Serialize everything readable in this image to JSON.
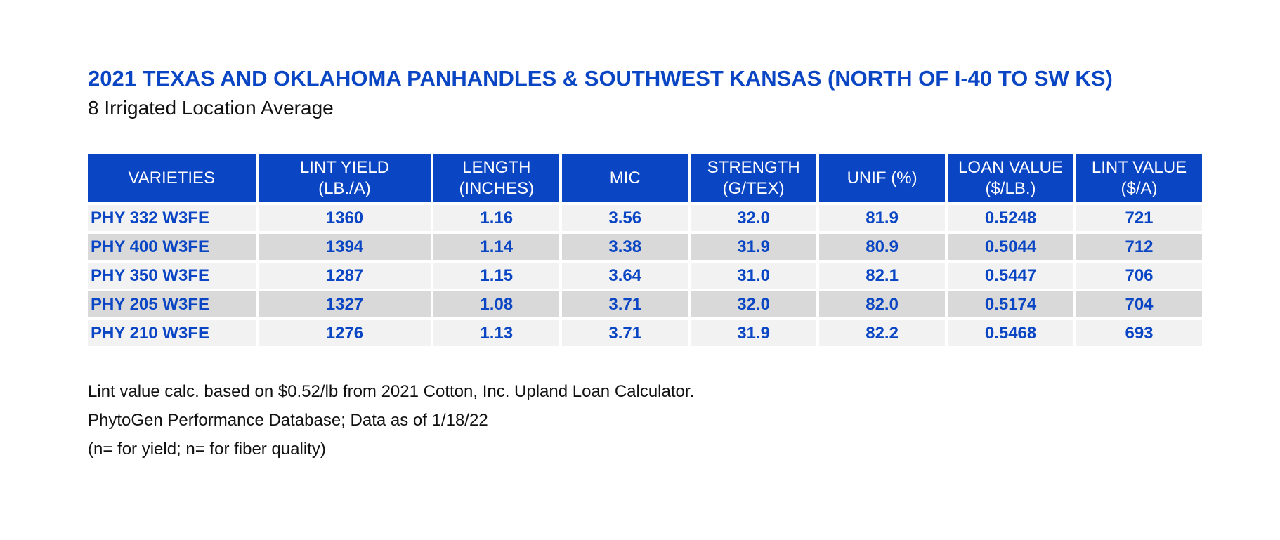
{
  "chart_data": {
    "type": "table",
    "title": "2021 TEXAS AND OKLAHOMA PANHANDLES & SOUTHWEST KANSAS (NORTH OF I-40 TO SW KS)",
    "subtitle": "8 Irrigated Location Average",
    "columns": [
      [
        "VARIETIES"
      ],
      [
        "LINT YIELD",
        "(LB./A)"
      ],
      [
        "LENGTH",
        "(INCHES)"
      ],
      [
        "MIC"
      ],
      [
        "STRENGTH",
        "(G/TEX)"
      ],
      [
        "UNIF (%)"
      ],
      [
        "LOAN VALUE",
        "($/LB.)"
      ],
      [
        "LINT VALUE",
        "($/A)"
      ]
    ],
    "rows": [
      [
        "PHY 332 W3FE",
        "1360",
        "1.16",
        "3.56",
        "32.0",
        "81.9",
        "0.5248",
        "721"
      ],
      [
        "PHY 400 W3FE",
        "1394",
        "1.14",
        "3.38",
        "31.9",
        "80.9",
        "0.5044",
        "712"
      ],
      [
        "PHY 350 W3FE",
        "1287",
        "1.15",
        "3.64",
        "31.0",
        "82.1",
        "0.5447",
        "706"
      ],
      [
        "PHY 205 W3FE",
        "1327",
        "1.08",
        "3.71",
        "32.0",
        "82.0",
        "0.5174",
        "704"
      ],
      [
        "PHY 210 W3FE",
        "1276",
        "1.13",
        "3.71",
        "31.9",
        "82.2",
        "0.5468",
        "693"
      ]
    ],
    "notes": [
      "Lint value calc. based on $0.52/lb from 2021 Cotton, Inc. Upland Loan Calculator.",
      "PhytoGen Performance Database; Data as of 1/18/22",
      "(n= for yield; n= for fiber quality)"
    ]
  },
  "colors": {
    "accent": "#0a46c4",
    "row_light": "#f2f2f2",
    "row_dark": "#d9d9d9",
    "header_text": "#ffffff",
    "body_text": "#111111"
  }
}
